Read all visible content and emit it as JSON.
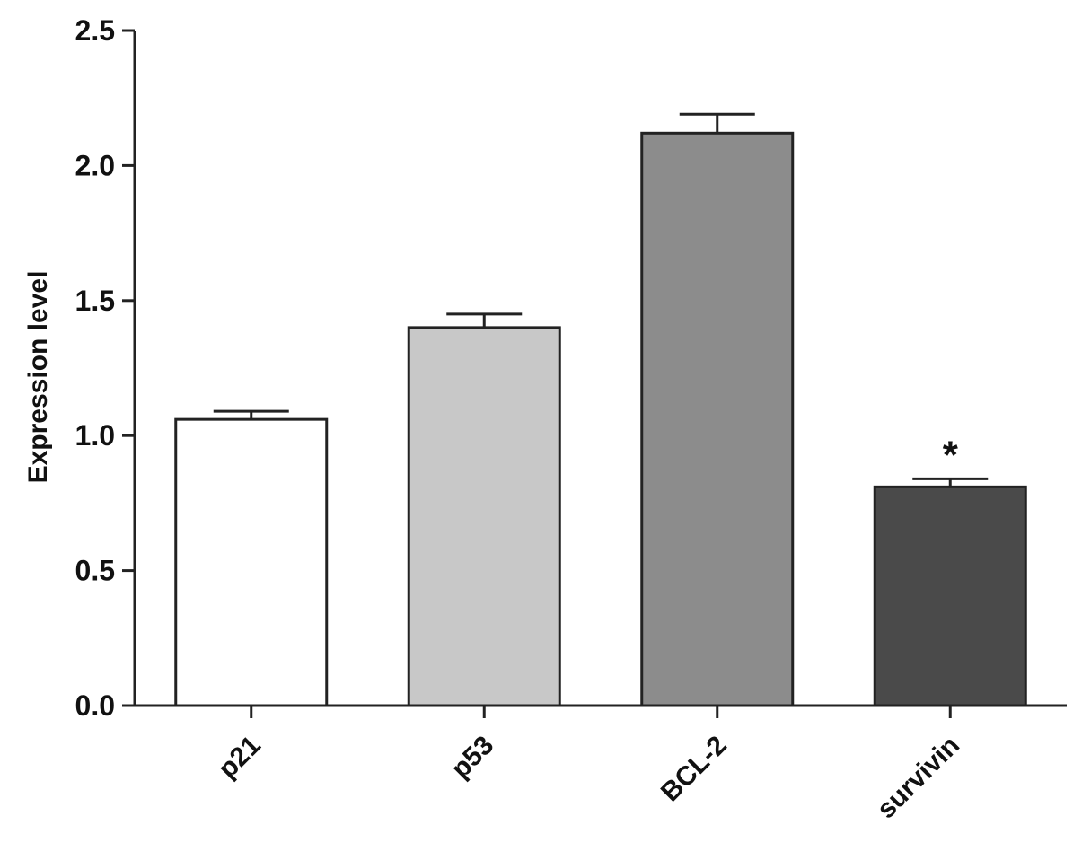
{
  "chart_data": {
    "type": "bar",
    "categories": [
      "p21",
      "p53",
      "BCL-2",
      "survivin"
    ],
    "values": [
      1.06,
      1.4,
      2.12,
      0.81
    ],
    "errors": [
      0.03,
      0.05,
      0.07,
      0.03
    ],
    "bar_colors": [
      "#ffffff",
      "#c8c8c8",
      "#8c8c8c",
      "#4a4a4a"
    ],
    "annotations": [
      "",
      "",
      "",
      "*"
    ],
    "ylabel": "Expression level",
    "xlabel": "",
    "ylim": [
      0,
      2.5
    ],
    "yticks": [
      "0.0",
      "0.5",
      "1.0",
      "1.5",
      "2.0",
      "2.5"
    ],
    "grid": false
  }
}
